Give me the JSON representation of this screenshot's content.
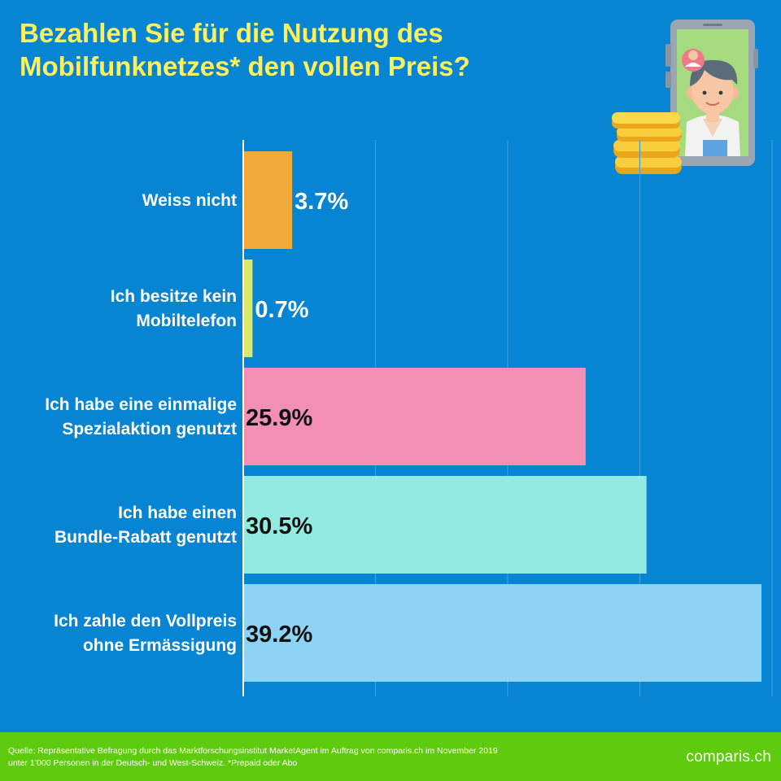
{
  "title_lines": [
    "Bezahlen Sie für die Nutzung des",
    "Mobilfunknetzes* den vollen Preis?"
  ],
  "chart_data": {
    "type": "bar",
    "orientation": "horizontal",
    "categories": [
      [
        "Weiss nicht"
      ],
      [
        "Ich besitze kein",
        "Mobiltelefon"
      ],
      [
        "Ich habe eine einmalige",
        "Spezialaktion genutzt"
      ],
      [
        "Ich habe einen",
        "Bundle-Rabatt genutzt"
      ],
      [
        "Ich zahle den Vollpreis",
        "ohne Ermässigung"
      ]
    ],
    "values": [
      3.7,
      0.7,
      25.9,
      30.5,
      39.2
    ],
    "value_labels": [
      "3.7%",
      "0.7%",
      "25.9%",
      "30.5%",
      "39.2%"
    ],
    "colors": [
      "#f0aa3a",
      "#dce86a",
      "#f38fb3",
      "#92ebe0",
      "#8dd3f6"
    ],
    "label_colors": [
      "#ffffff",
      "#ffffff",
      "#111111",
      "#111111",
      "#111111"
    ],
    "xlim": [
      0,
      40
    ],
    "grid": true
  },
  "footer": {
    "source_lines": [
      "Quelle: Repräsentative Befragung durch das Marktforschungsinstitut MarketAgent im Auftrag von comparis.ch im November 2019",
      "unter 1’000 Personen in der Deutsch- und West-Schweiz. *Prepaid oder Abo"
    ],
    "brand": "comparis.ch"
  }
}
